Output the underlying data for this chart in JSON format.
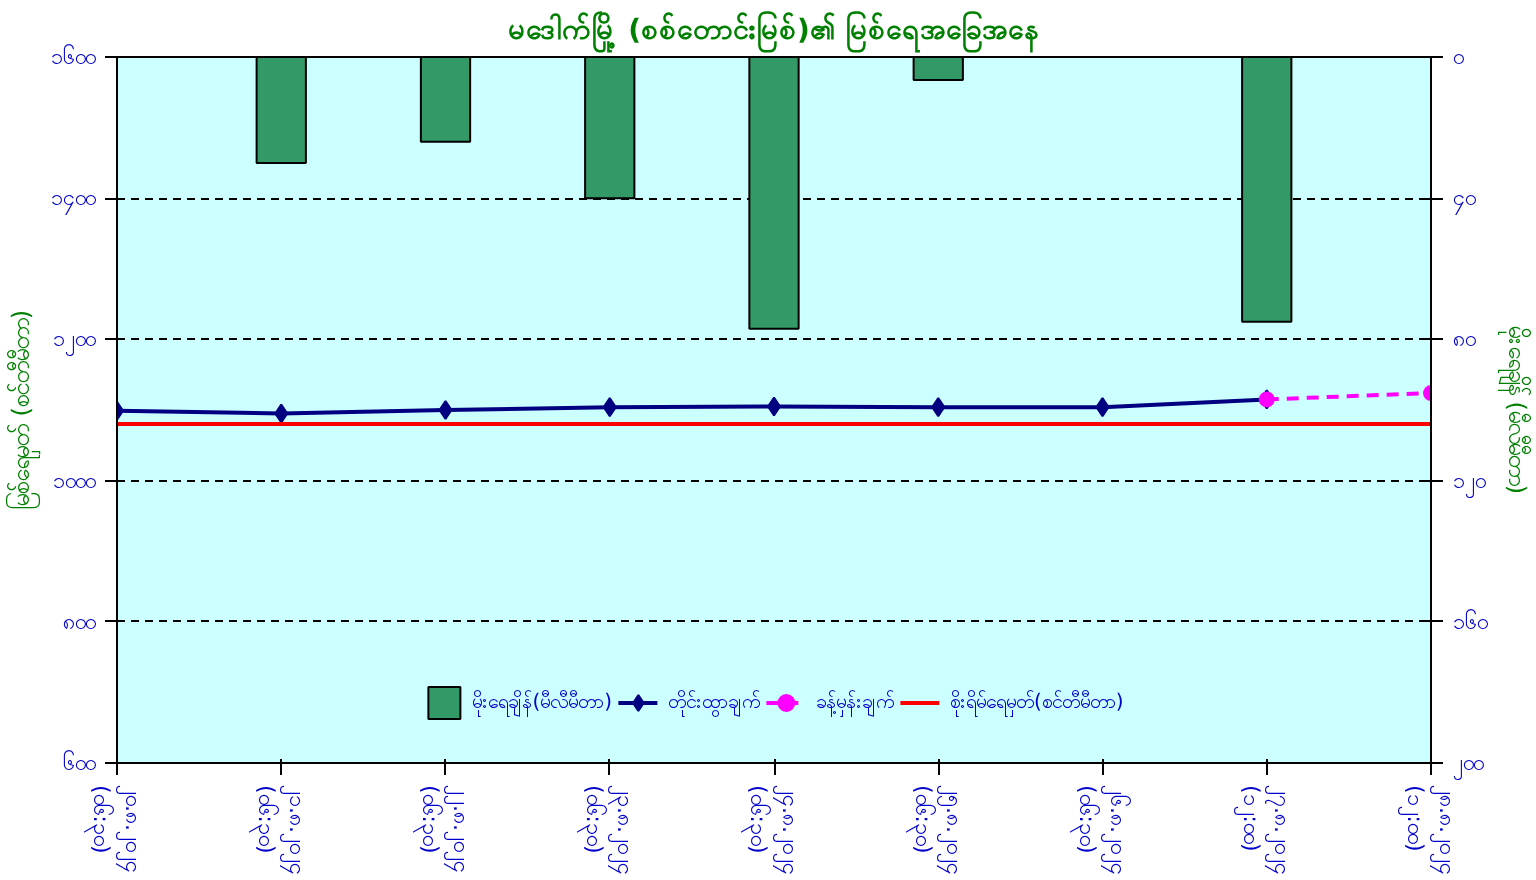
{
  "chart_data": {
    "type": "line",
    "title": "မဒေါက်မြို့ (စစ်တောင်းမြစ်)၏ မြစ်ရေအခြေအနေ",
    "ylabel": "မြစ်ရေမှတ် (စင်တီမီတာ)",
    "y2label": "မိုးရေချိန် (မီလီမီတာ)",
    "categories": [
      "၂၀.၈.၂၀၂၄ (၀၆:၃၀)",
      "၂၁.၈.၂၀၂၄ (၀၆:၃၀)",
      "၂၂.၈.၂၀၂၄ (၀၆:၃၀)",
      "၂၃.၈.၂၀၂၄ (၀၆:၃၀)",
      "၂၄.၈.၂၀၂၄ (၀၆:၃၀)",
      "၂၅.၈.၂၀၂၄ (၀၆:၃၀)",
      "၂၆.၈.၂၀၂၄ (၀၆:၃၀)",
      "၂၇.၈.၂၀၂၄ (၁၂:၀၀)",
      "၂၈.၈.၂၀၂၄ (၁၂:၀၀)"
    ],
    "series": [
      {
        "name": "မိုးရေချိန်(မီလီမီတာ)",
        "type": "bar",
        "axis": "y2",
        "color": "#339966",
        "values": [
          null,
          30,
          24,
          40,
          77,
          6.5,
          null,
          75,
          null
        ]
      },
      {
        "name": "တိုင်းထွာချက်",
        "color": "#000080",
        "marker": "diamond",
        "line_style": "solid",
        "values": [
          1099,
          1095,
          1100,
          1104,
          1105,
          1104,
          1104,
          1115,
          null
        ]
      },
      {
        "name": "ခန့်မှန်းချက်",
        "color": "#ff00ff",
        "marker": "circle",
        "line_style": "dashed",
        "values": [
          null,
          null,
          null,
          null,
          null,
          null,
          null,
          1115,
          1124
        ]
      },
      {
        "name": "စိုးရိမ်ရေမှတ်(စင်တီမီတာ)",
        "color": "#ff0000",
        "marker": "none",
        "line_style": "solid",
        "values": [
          1080,
          1080,
          1080,
          1080,
          1080,
          1080,
          1080,
          1080,
          1080
        ]
      }
    ],
    "ylim": [
      600,
      1600
    ],
    "yticks": [
      {
        "value": 600,
        "label": "၆၀၀"
      },
      {
        "value": 800,
        "label": "၈၀၀"
      },
      {
        "value": 1000,
        "label": "၁၀၀၀"
      },
      {
        "value": 1200,
        "label": "၁၂၀၀"
      },
      {
        "value": 1400,
        "label": "၁၄၀၀"
      },
      {
        "value": 1600,
        "label": "၁၆၀၀"
      }
    ],
    "y2lim": [
      200,
      0
    ],
    "y2ticks": [
      {
        "value": 0,
        "label": "၀"
      },
      {
        "value": 40,
        "label": "၄၀"
      },
      {
        "value": 80,
        "label": "၈၀"
      },
      {
        "value": 120,
        "label": "၁၂၀"
      },
      {
        "value": 160,
        "label": "၁၆၀"
      },
      {
        "value": 200,
        "label": "၂၀၀"
      }
    ],
    "grid": "y",
    "legend": "bottom"
  }
}
